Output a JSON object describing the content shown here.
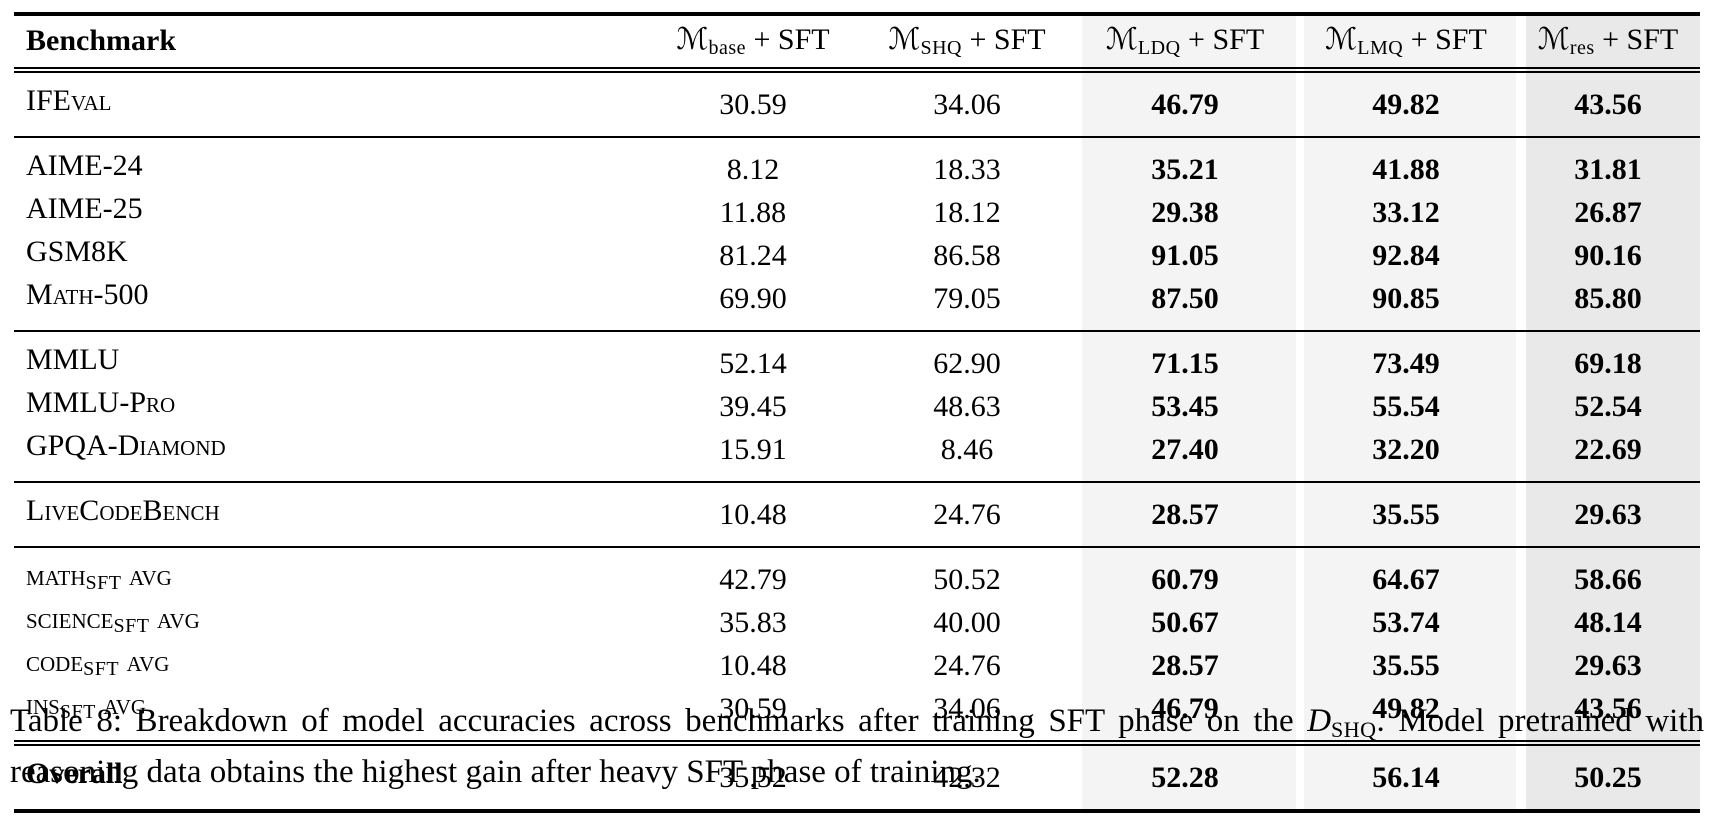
{
  "colors": {
    "highlight_light": "#f4f4f4",
    "highlight_dark": "#e9e9e9",
    "rule": "#000000",
    "text": "#000000",
    "background": "#ffffff"
  },
  "table": {
    "header": {
      "benchmark": "Benchmark",
      "columns": [
        {
          "symbol": "ℳ",
          "sub": "base",
          "rest": " + SFT",
          "highlight": "none"
        },
        {
          "symbol": "ℳ",
          "sub": "SHQ",
          "rest": " + SFT",
          "highlight": "none"
        },
        {
          "symbol": "ℳ",
          "sub": "LDQ",
          "rest": " + SFT",
          "highlight": "light"
        },
        {
          "symbol": "ℳ",
          "sub": "LMQ",
          "rest": " + SFT",
          "highlight": "light"
        },
        {
          "symbol": "ℳ",
          "sub": "res",
          "rest": " + SFT",
          "highlight": "dark"
        }
      ]
    },
    "sections": [
      {
        "rows": [
          {
            "label": "IFEval",
            "sub": "",
            "tail": "",
            "bold": false,
            "values": [
              "30.59",
              "34.06",
              "46.79",
              "49.82",
              "43.56"
            ]
          }
        ]
      },
      {
        "rows": [
          {
            "label": "AIME-24",
            "sub": "",
            "tail": "",
            "bold": false,
            "values": [
              "8.12",
              "18.33",
              "35.21",
              "41.88",
              "31.81"
            ]
          },
          {
            "label": "AIME-25",
            "sub": "",
            "tail": "",
            "bold": false,
            "values": [
              "11.88",
              "18.12",
              "29.38",
              "33.12",
              "26.87"
            ]
          },
          {
            "label": "GSM8K",
            "sub": "",
            "tail": "",
            "bold": false,
            "values": [
              "81.24",
              "86.58",
              "91.05",
              "92.84",
              "90.16"
            ]
          },
          {
            "label": "Math-500",
            "sub": "",
            "tail": "",
            "bold": false,
            "values": [
              "69.90",
              "79.05",
              "87.50",
              "90.85",
              "85.80"
            ]
          }
        ]
      },
      {
        "rows": [
          {
            "label": "MMLU",
            "sub": "",
            "tail": "",
            "bold": false,
            "values": [
              "52.14",
              "62.90",
              "71.15",
              "73.49",
              "69.18"
            ]
          },
          {
            "label": "MMLU-Pro",
            "sub": "",
            "tail": "",
            "bold": false,
            "values": [
              "39.45",
              "48.63",
              "53.45",
              "55.54",
              "52.54"
            ]
          },
          {
            "label": "GPQA-Diamond",
            "sub": "",
            "tail": "",
            "bold": false,
            "values": [
              "15.91",
              "8.46",
              "27.40",
              "32.20",
              "22.69"
            ]
          }
        ]
      },
      {
        "rows": [
          {
            "label": "LiveCodeBench",
            "sub": "",
            "tail": "",
            "bold": false,
            "values": [
              "10.48",
              "24.76",
              "28.57",
              "35.55",
              "29.63"
            ]
          }
        ]
      },
      {
        "rows": [
          {
            "label": "math",
            "sub": "SFT",
            "tail": " avg",
            "bold": false,
            "values": [
              "42.79",
              "50.52",
              "60.79",
              "64.67",
              "58.66"
            ]
          },
          {
            "label": "science",
            "sub": "SFT",
            "tail": " avg",
            "bold": false,
            "values": [
              "35.83",
              "40.00",
              "50.67",
              "53.74",
              "48.14"
            ]
          },
          {
            "label": "code",
            "sub": "SFT",
            "tail": " avg",
            "bold": false,
            "values": [
              "10.48",
              "24.76",
              "28.57",
              "35.55",
              "29.63"
            ]
          },
          {
            "label": "ins",
            "sub": "SFT",
            "tail": " avg",
            "bold": false,
            "values": [
              "30.59",
              "34.06",
              "46.79",
              "49.82",
              "43.56"
            ]
          }
        ]
      },
      {
        "rows": [
          {
            "label": "Overall",
            "sub": "",
            "tail": "",
            "bold": true,
            "values": [
              "35.52",
              "42.32",
              "52.28",
              "56.14",
              "50.25"
            ]
          }
        ]
      }
    ]
  },
  "caption": {
    "part1": "Table 8: Breakdown of model accuracies across benchmarks after training SFT phase on the ",
    "symbol": "D",
    "symbol_sub": "SHQ",
    "part2": ". Model pretrained with reasoning data obtains the highest gain after heavy SFT phase of training."
  }
}
